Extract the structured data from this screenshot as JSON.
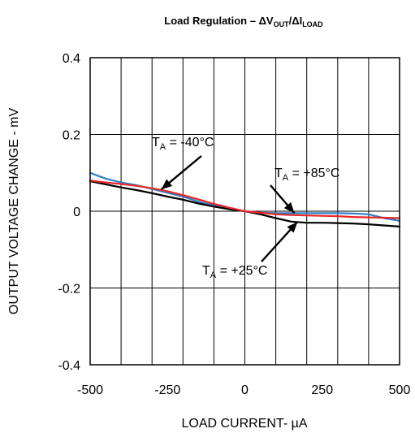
{
  "chart_data": {
    "type": "line",
    "title_parts": {
      "prefix": "Load Regulation – ΔV",
      "sub1": "OUT",
      "mid": "/ΔI",
      "sub2": "LOAD"
    },
    "xlabel": "LOAD CURRENT- µA",
    "ylabel": "OUTPUT VOLTAGE CHANGE - mV",
    "xlim": [
      -500,
      500
    ],
    "ylim": [
      -0.4,
      0.4
    ],
    "xticks": [
      -500,
      -250,
      0,
      250,
      500
    ],
    "xtick_labels": [
      "-500",
      "-250",
      "0",
      "250",
      "500"
    ],
    "yticks": [
      0.4,
      0.2,
      0,
      -0.2,
      -0.4
    ],
    "ytick_labels": [
      "0.4",
      "0.2",
      "0",
      "-0.2",
      "-0.4"
    ],
    "x_gridlines": [
      -400,
      -300,
      -200,
      -100,
      0,
      100,
      200,
      300,
      400
    ],
    "y_gridlines": [
      0.2,
      0,
      -0.2
    ],
    "grid": true,
    "legend": "none",
    "series": [
      {
        "name": "TA = +85°C",
        "color": "#2f7fc8",
        "points": [
          [
            -500,
            0.1
          ],
          [
            -450,
            0.085
          ],
          [
            -400,
            0.075
          ],
          [
            -350,
            0.068
          ],
          [
            -300,
            0.058
          ],
          [
            -250,
            0.048
          ],
          [
            -200,
            0.038
          ],
          [
            -150,
            0.025
          ],
          [
            -100,
            0.015
          ],
          [
            -50,
            0.007
          ],
          [
            0,
            0.0
          ],
          [
            50,
            -0.004
          ],
          [
            100,
            -0.005
          ],
          [
            150,
            -0.005
          ],
          [
            200,
            -0.005
          ],
          [
            250,
            -0.005
          ],
          [
            300,
            -0.005
          ],
          [
            350,
            -0.006
          ],
          [
            400,
            -0.008
          ],
          [
            450,
            -0.018
          ],
          [
            500,
            -0.025
          ]
        ]
      },
      {
        "name": "TA = +25°C",
        "color": "#000000",
        "points": [
          [
            -500,
            0.078
          ],
          [
            -450,
            0.07
          ],
          [
            -400,
            0.062
          ],
          [
            -350,
            0.055
          ],
          [
            -300,
            0.047
          ],
          [
            -250,
            0.038
          ],
          [
            -200,
            0.03
          ],
          [
            -150,
            0.02
          ],
          [
            -100,
            0.012
          ],
          [
            -50,
            0.005
          ],
          [
            0,
            0.0
          ],
          [
            50,
            -0.008
          ],
          [
            100,
            -0.018
          ],
          [
            150,
            -0.027
          ],
          [
            200,
            -0.03
          ],
          [
            250,
            -0.03
          ],
          [
            300,
            -0.031
          ],
          [
            350,
            -0.032
          ],
          [
            400,
            -0.034
          ],
          [
            450,
            -0.037
          ],
          [
            500,
            -0.04
          ]
        ]
      },
      {
        "name": "TA = -40°C",
        "color": "#e8272a",
        "points": [
          [
            -500,
            0.08
          ],
          [
            -450,
            0.075
          ],
          [
            -400,
            0.071
          ],
          [
            -350,
            0.066
          ],
          [
            -300,
            0.06
          ],
          [
            -250,
            0.052
          ],
          [
            -200,
            0.042
          ],
          [
            -150,
            0.031
          ],
          [
            -100,
            0.019
          ],
          [
            -50,
            0.009
          ],
          [
            0,
            0.0
          ],
          [
            50,
            -0.004
          ],
          [
            100,
            -0.008
          ],
          [
            150,
            -0.01
          ],
          [
            200,
            -0.011
          ],
          [
            250,
            -0.012
          ],
          [
            300,
            -0.013
          ],
          [
            350,
            -0.015
          ],
          [
            400,
            -0.016
          ],
          [
            450,
            -0.017
          ],
          [
            500,
            -0.018
          ]
        ]
      }
    ],
    "annotations": [
      {
        "prefix": "T",
        "sub": "A",
        "text": " = -40°C",
        "series": "TA = -40°C",
        "target": [
          -270,
          0.057
        ]
      },
      {
        "prefix": "T",
        "sub": "A",
        "text": " = +85°C",
        "series": "TA = +85°C",
        "target": [
          160,
          -0.005
        ]
      },
      {
        "prefix": "T",
        "sub": "A",
        "text": " = +25°C",
        "series": "TA = +25°C",
        "target": [
          170,
          -0.028
        ]
      }
    ]
  }
}
